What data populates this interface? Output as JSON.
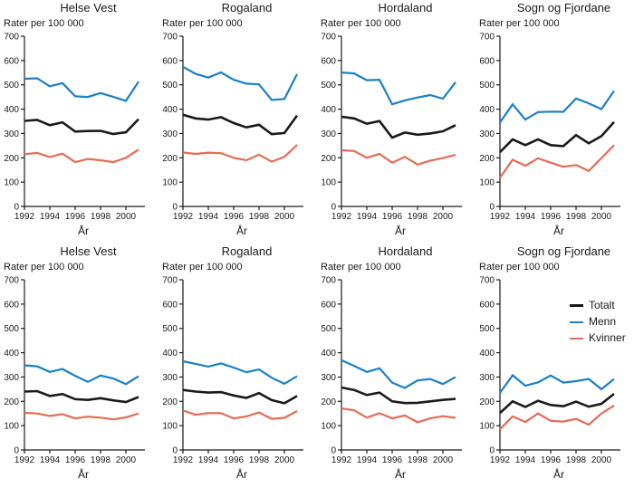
{
  "figure": {
    "y_axis_caption": "Rater per 100 000",
    "x_axis_label": "År",
    "background": "#ffffff",
    "grid": "off",
    "legend_position": "right of bottom-right subplot"
  },
  "colors": {
    "totalt": "#1a1a1a",
    "menn": "#1b80c4",
    "kvinner": "#e36c56",
    "axis": "#1a1a1a",
    "text": "#1a1a1a"
  },
  "legend": {
    "entries": [
      {
        "label": "Totalt",
        "series": "totalt"
      },
      {
        "label": "Menn",
        "series": "menn"
      },
      {
        "label": "Kvinner",
        "series": "kvinner"
      }
    ]
  },
  "chart_data": [
    {
      "type": "line",
      "title": "Helse Vest",
      "position": "row1-col1",
      "ylabel": "Rater per 100 000",
      "xlabel": "År",
      "x": [
        1992,
        1993,
        1994,
        1995,
        1996,
        1997,
        1998,
        1999,
        2000,
        2001
      ],
      "xtick_labels": [
        "1992",
        "1994",
        "1996",
        "1998",
        "2000"
      ],
      "ylim": [
        0,
        700
      ],
      "yticks": [
        0,
        100,
        200,
        300,
        400,
        500,
        600,
        700
      ],
      "series": [
        {
          "name": "Totalt",
          "color": "totalt",
          "values": [
            352,
            356,
            334,
            346,
            308,
            310,
            311,
            298,
            305,
            359
          ]
        },
        {
          "name": "Menn",
          "color": "menn",
          "values": [
            525,
            527,
            494,
            507,
            453,
            450,
            466,
            451,
            434,
            513
          ]
        },
        {
          "name": "Kvinner",
          "color": "kvinner",
          "values": [
            215,
            220,
            203,
            217,
            182,
            195,
            190,
            182,
            200,
            234
          ]
        }
      ]
    },
    {
      "type": "line",
      "title": "Rogaland",
      "position": "row1-col2",
      "ylabel": "Rater per 100 000",
      "xlabel": "År",
      "x": [
        1992,
        1993,
        1994,
        1995,
        1996,
        1997,
        1998,
        1999,
        2000,
        2001
      ],
      "xtick_labels": [
        "1992",
        "1994",
        "1996",
        "1998",
        "2000"
      ],
      "ylim": [
        0,
        700
      ],
      "yticks": [
        0,
        100,
        200,
        300,
        400,
        500,
        600,
        700
      ],
      "series": [
        {
          "name": "Totalt",
          "color": "totalt",
          "values": [
            377,
            362,
            357,
            367,
            343,
            325,
            336,
            297,
            302,
            374
          ]
        },
        {
          "name": "Menn",
          "color": "menn",
          "values": [
            574,
            545,
            530,
            551,
            521,
            505,
            502,
            438,
            442,
            544
          ]
        },
        {
          "name": "Kvinner",
          "color": "kvinner",
          "values": [
            222,
            216,
            221,
            219,
            200,
            190,
            213,
            184,
            204,
            253
          ]
        }
      ]
    },
    {
      "type": "line",
      "title": "Hordaland",
      "position": "row1-col3",
      "ylabel": "Rater per 100 000",
      "xlabel": "År",
      "x": [
        1992,
        1993,
        1994,
        1995,
        1996,
        1997,
        1998,
        1999,
        2000,
        2001
      ],
      "xtick_labels": [
        "1992",
        "1994",
        "1996",
        "1998",
        "2000"
      ],
      "ylim": [
        0,
        700
      ],
      "yticks": [
        0,
        100,
        200,
        300,
        400,
        500,
        600,
        700
      ],
      "series": [
        {
          "name": "Totalt",
          "color": "totalt",
          "values": [
            369,
            362,
            340,
            351,
            283,
            304,
            295,
            300,
            309,
            334
          ]
        },
        {
          "name": "Menn",
          "color": "menn",
          "values": [
            551,
            547,
            519,
            521,
            420,
            436,
            448,
            458,
            443,
            511
          ]
        },
        {
          "name": "Kvinner",
          "color": "kvinner",
          "values": [
            231,
            228,
            200,
            216,
            180,
            204,
            172,
            188,
            199,
            212
          ]
        }
      ]
    },
    {
      "type": "line",
      "title": "Sogn og Fjordane",
      "position": "row1-col4",
      "ylabel": "Rater per 100 000",
      "xlabel": "År",
      "x": [
        1992,
        1993,
        1994,
        1995,
        1996,
        1997,
        1998,
        1999,
        2000,
        2001
      ],
      "xtick_labels": [
        "1992",
        "1994",
        "1996",
        "1998",
        "2000"
      ],
      "ylim": [
        0,
        700
      ],
      "yticks": [
        0,
        100,
        200,
        300,
        400,
        500,
        600,
        700
      ],
      "series": [
        {
          "name": "Totalt",
          "color": "totalt",
          "values": [
            223,
            276,
            252,
            276,
            252,
            248,
            293,
            260,
            289,
            347
          ]
        },
        {
          "name": "Menn",
          "color": "menn",
          "values": [
            345,
            420,
            357,
            388,
            390,
            389,
            444,
            424,
            400,
            475
          ]
        },
        {
          "name": "Kvinner",
          "color": "kvinner",
          "values": [
            118,
            192,
            167,
            198,
            180,
            163,
            170,
            146,
            199,
            252
          ]
        }
      ]
    },
    {
      "type": "line",
      "title": "Helse Vest",
      "position": "row2-col1",
      "ylabel": "Rater per 100 000",
      "xlabel": "År",
      "x": [
        1992,
        1993,
        1994,
        1995,
        1996,
        1997,
        1998,
        1999,
        2000,
        2001
      ],
      "xtick_labels": [
        "1992",
        "1994",
        "1996",
        "1998",
        "2000"
      ],
      "ylim": [
        0,
        700
      ],
      "yticks": [
        0,
        100,
        200,
        300,
        400,
        500,
        600,
        700
      ],
      "series": [
        {
          "name": "Totalt",
          "color": "totalt",
          "values": [
            240,
            242,
            222,
            230,
            209,
            206,
            213,
            204,
            197,
            218
          ]
        },
        {
          "name": "Menn",
          "color": "menn",
          "values": [
            348,
            344,
            321,
            333,
            305,
            280,
            306,
            294,
            271,
            303
          ]
        },
        {
          "name": "Kvinner",
          "color": "kvinner",
          "values": [
            153,
            150,
            140,
            147,
            130,
            137,
            133,
            126,
            134,
            150
          ]
        }
      ]
    },
    {
      "type": "line",
      "title": "Rogaland",
      "position": "row2-col2",
      "ylabel": "Rater per 100 000",
      "xlabel": "År",
      "x": [
        1992,
        1993,
        1994,
        1995,
        1996,
        1997,
        1998,
        1999,
        2000,
        2001
      ],
      "xtick_labels": [
        "1992",
        "1994",
        "1996",
        "1998",
        "2000"
      ],
      "ylim": [
        0,
        700
      ],
      "yticks": [
        0,
        100,
        200,
        300,
        400,
        500,
        600,
        700
      ],
      "series": [
        {
          "name": "Totalt",
          "color": "totalt",
          "values": [
            247,
            240,
            236,
            238,
            224,
            214,
            234,
            205,
            192,
            222
          ]
        },
        {
          "name": "Menn",
          "color": "menn",
          "values": [
            365,
            354,
            343,
            356,
            339,
            320,
            331,
            297,
            272,
            304
          ]
        },
        {
          "name": "Kvinner",
          "color": "kvinner",
          "values": [
            162,
            145,
            152,
            151,
            130,
            138,
            154,
            128,
            132,
            160
          ]
        }
      ]
    },
    {
      "type": "line",
      "title": "Hordaland",
      "position": "row2-col3",
      "ylabel": "Rater per 100 000",
      "xlabel": "År",
      "x": [
        1992,
        1993,
        1994,
        1995,
        1996,
        1997,
        1998,
        1999,
        2000,
        2001
      ],
      "xtick_labels": [
        "1992",
        "1994",
        "1996",
        "1998",
        "2000"
      ],
      "ylim": [
        0,
        700
      ],
      "yticks": [
        0,
        100,
        200,
        300,
        400,
        500,
        600,
        700
      ],
      "series": [
        {
          "name": "Totalt",
          "color": "totalt",
          "values": [
            257,
            247,
            226,
            236,
            200,
            193,
            194,
            200,
            206,
            210
          ]
        },
        {
          "name": "Menn",
          "color": "menn",
          "values": [
            369,
            346,
            321,
            336,
            277,
            255,
            286,
            292,
            271,
            300
          ]
        },
        {
          "name": "Kvinner",
          "color": "kvinner",
          "values": [
            171,
            163,
            133,
            151,
            130,
            142,
            114,
            130,
            139,
            132
          ]
        }
      ]
    },
    {
      "type": "line",
      "title": "Sogn og Fjordane",
      "position": "row2-col4",
      "ylabel": "Rater per 100 000",
      "xlabel": "År",
      "x": [
        1992,
        1993,
        1994,
        1995,
        1996,
        1997,
        1998,
        1999,
        2000,
        2001
      ],
      "xtick_labels": [
        "1992",
        "1994",
        "1996",
        "1998",
        "2000"
      ],
      "ylim": [
        0,
        700
      ],
      "yticks": [
        0,
        100,
        200,
        300,
        400,
        500,
        600,
        700
      ],
      "series": [
        {
          "name": "Totalt",
          "color": "totalt",
          "values": [
            152,
            200,
            177,
            202,
            185,
            180,
            199,
            178,
            190,
            231
          ]
        },
        {
          "name": "Menn",
          "color": "menn",
          "values": [
            235,
            307,
            264,
            278,
            306,
            277,
            283,
            292,
            250,
            292
          ]
        },
        {
          "name": "Kvinner",
          "color": "kvinner",
          "values": [
            85,
            138,
            115,
            150,
            120,
            117,
            128,
            104,
            150,
            183
          ]
        }
      ]
    }
  ]
}
